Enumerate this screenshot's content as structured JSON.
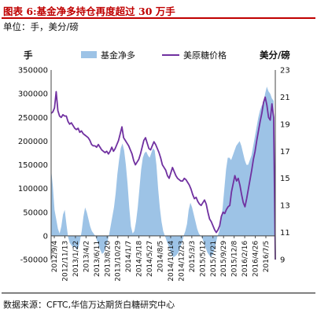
{
  "figure": {
    "title": "图表 6:基金净多持仓再度超过 30 万手",
    "unit": "单位：手，美分/磅",
    "source": "数据来源：CFTC,华信万达期货白糖研究中心"
  },
  "chart_data": {
    "type": "area+line",
    "title": "",
    "left_axis": {
      "label": "手",
      "min": -50000,
      "max": 350000,
      "step": 50000,
      "ticks": [
        "-50000",
        "0",
        "50000",
        "100000",
        "150000",
        "200000",
        "250000",
        "300000",
        "350000"
      ]
    },
    "right_axis": {
      "label": "美分/磅",
      "label_shown": "美分/磅",
      "min": 9,
      "max": 23,
      "step": 2,
      "ticks": [
        "9",
        "11",
        "13",
        "15",
        "17",
        "19",
        "21",
        "23"
      ]
    },
    "x_tick_labels": [
      "2012/9/4",
      "2012/11/13",
      "2013/1/22",
      "2013/4/2",
      "2013/6/11",
      "2013/8/20",
      "2013/10/29",
      "2014/1/7",
      "2014/3/18",
      "2014/5/27",
      "2014/8/5",
      "2014/10/14",
      "2014/12/23",
      "2015/3/3",
      "2015/5/12",
      "2015/7/21",
      "2015/9/29",
      "2015/12/8",
      "2016/2/16",
      "2016/4/26",
      "2016/7/5"
    ],
    "legend": [
      {
        "name": "基金净多",
        "type": "area",
        "color": "#9dc3e6"
      },
      {
        "name": "美原糖价格",
        "type": "line",
        "color": "#7030a0"
      }
    ],
    "series": [
      {
        "name": "基金净多",
        "axis": "left",
        "values": [
          140000,
          105000,
          55000,
          35000,
          15000,
          5000,
          20000,
          45000,
          55000,
          25000,
          -3000,
          -15000,
          -20000,
          -25000,
          -22000,
          -30000,
          -25000,
          -10000,
          10000,
          40000,
          60000,
          50000,
          35000,
          20000,
          10000,
          5000,
          0,
          -10000,
          -20000,
          -30000,
          -38000,
          -35000,
          -25000,
          -15000,
          0,
          20000,
          40000,
          60000,
          90000,
          130000,
          160000,
          185000,
          195000,
          180000,
          150000,
          110000,
          60000,
          20000,
          5000,
          10000,
          30000,
          60000,
          100000,
          140000,
          165000,
          175000,
          178000,
          170000,
          165000,
          175000,
          185000,
          180000,
          150000,
          100000,
          60000,
          30000,
          10000,
          0,
          -10000,
          -20000,
          -30000,
          -40000,
          -45000,
          -43000,
          -40000,
          -35000,
          -25000,
          -15000,
          0,
          10000,
          25000,
          55000,
          70000,
          60000,
          45000,
          30000,
          15000,
          5000,
          0,
          -5000,
          -15000,
          -25000,
          -35000,
          -40000,
          -45000,
          -40000,
          -30000,
          -15000,
          0,
          10000,
          30000,
          60000,
          100000,
          140000,
          165000,
          165000,
          160000,
          170000,
          180000,
          190000,
          195000,
          200000,
          190000,
          175000,
          160000,
          150000,
          150000,
          160000,
          170000,
          190000,
          210000,
          230000,
          250000,
          265000,
          275000,
          280000,
          300000,
          315000,
          305000,
          300000,
          290000,
          285000,
          -50000
        ]
      },
      {
        "name": "美原糖价格",
        "axis": "right",
        "values": [
          19.8,
          19.9,
          20.2,
          21.4,
          20.0,
          19.6,
          19.5,
          19.7,
          19.6,
          19.6,
          19.2,
          19.0,
          19.1,
          18.9,
          18.7,
          18.6,
          18.7,
          18.4,
          18.5,
          18.3,
          18.2,
          18.1,
          18.0,
          17.8,
          17.5,
          17.4,
          17.4,
          17.3,
          17.5,
          17.3,
          17.1,
          17.0,
          16.9,
          17.0,
          16.8,
          17.0,
          17.3,
          17.0,
          17.2,
          17.5,
          17.8,
          18.3,
          18.8,
          18.0,
          17.8,
          17.6,
          17.4,
          17.1,
          16.8,
          16.3,
          16.0,
          16.2,
          16.4,
          16.8,
          17.3,
          17.8,
          18.0,
          17.6,
          17.2,
          17.1,
          17.4,
          17.7,
          17.5,
          17.2,
          16.9,
          16.5,
          16.0,
          15.8,
          15.6,
          15.2,
          15.0,
          15.4,
          15.8,
          15.5,
          15.2,
          15.0,
          14.9,
          14.8,
          14.8,
          15.0,
          14.9,
          14.7,
          14.5,
          14.2,
          13.8,
          13.5,
          13.6,
          13.3,
          13.1,
          13.0,
          13.2,
          13.4,
          13.1,
          12.5,
          12.0,
          11.8,
          11.5,
          11.2,
          11.0,
          11.2,
          11.5,
          12.2,
          12.5,
          12.4,
          12.7,
          12.9,
          13.0,
          14.0,
          14.6,
          15.2,
          14.8,
          15.0,
          14.5,
          13.8,
          13.2,
          12.9,
          13.5,
          14.2,
          14.9,
          15.6,
          16.4,
          17.0,
          17.8,
          18.5,
          19.2,
          19.8,
          20.6,
          21.0,
          20.4,
          19.5,
          19.3,
          20.5,
          19.5,
          9.0
        ]
      }
    ]
  }
}
